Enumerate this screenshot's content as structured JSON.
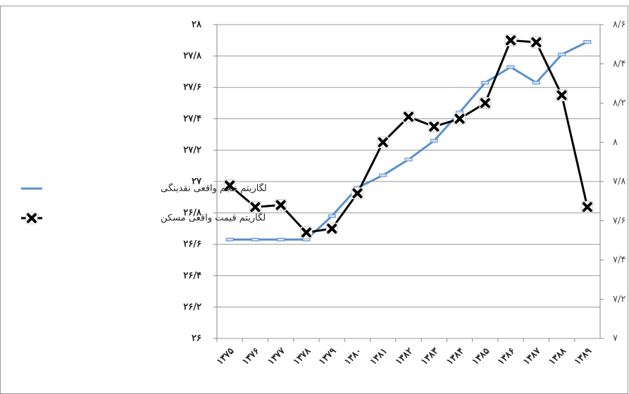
{
  "chart_data": {
    "type": "line",
    "categories": [
      "۱۳۷۵",
      "۱۳۷۶",
      "۱۳۷۷",
      "۱۳۷۸",
      "۱۳۷۹",
      "۱۳۸۰",
      "۱۳۸۱",
      "۱۳۸۲",
      "۱۳۸۳",
      "۱۳۸۴",
      "۱۳۸۵",
      "۱۳۸۶",
      "۱۳۸۷",
      "۱۳۸۸",
      "۱۳۸۹"
    ],
    "series": [
      {
        "name": "لگاریتم حجم واقعی نقدینگی",
        "color": "#5b8fd0",
        "values": [
          26.63,
          26.63,
          26.63,
          26.63,
          26.78,
          26.96,
          27.04,
          27.14,
          27.26,
          27.44,
          27.63,
          27.73,
          27.63,
          27.81,
          27.89
        ]
      },
      {
        "name": "لگاریتم قیمت واقعی مسکن",
        "color": "#000000",
        "axis": "y2",
        "values": [
          7.78,
          7.67,
          7.68,
          7.54,
          7.56,
          7.74,
          8.0,
          8.13,
          8.08,
          8.12,
          8.2,
          8.52,
          8.51,
          8.24,
          7.67
        ]
      }
    ],
    "ylim": [
      26,
      28
    ],
    "yticks": [
      {
        "value": 26,
        "label": "۲۶"
      },
      {
        "value": 26.2,
        "label": "۲۶/۲"
      },
      {
        "value": 26.4,
        "label": "۲۶/۴"
      },
      {
        "value": 26.6,
        "label": "۲۶/۶"
      },
      {
        "value": 26.8,
        "label": "۲۶/۸"
      },
      {
        "value": 27,
        "label": "۲۷"
      },
      {
        "value": 27.2,
        "label": "۲۷/۲"
      },
      {
        "value": 27.4,
        "label": "۲۷/۴"
      },
      {
        "value": 27.6,
        "label": "۲۷/۶"
      },
      {
        "value": 27.8,
        "label": "۲۷/۸"
      },
      {
        "value": 28,
        "label": "۲۸"
      }
    ],
    "y2lim": [
      7,
      8.6
    ],
    "y2ticks": [
      {
        "value": 7,
        "label": "۷"
      },
      {
        "value": 7.2,
        "label": "۷/۲"
      },
      {
        "value": 7.4,
        "label": "۷/۴"
      },
      {
        "value": 7.6,
        "label": "۷/۶"
      },
      {
        "value": 7.8,
        "label": "۷/۸"
      },
      {
        "value": 8,
        "label": "۸"
      },
      {
        "value": 8.2,
        "label": "۸/۲"
      },
      {
        "value": 8.4,
        "label": "۸/۴"
      },
      {
        "value": 8.6,
        "label": "۸/۶"
      }
    ],
    "grid": true,
    "legend": "left"
  }
}
